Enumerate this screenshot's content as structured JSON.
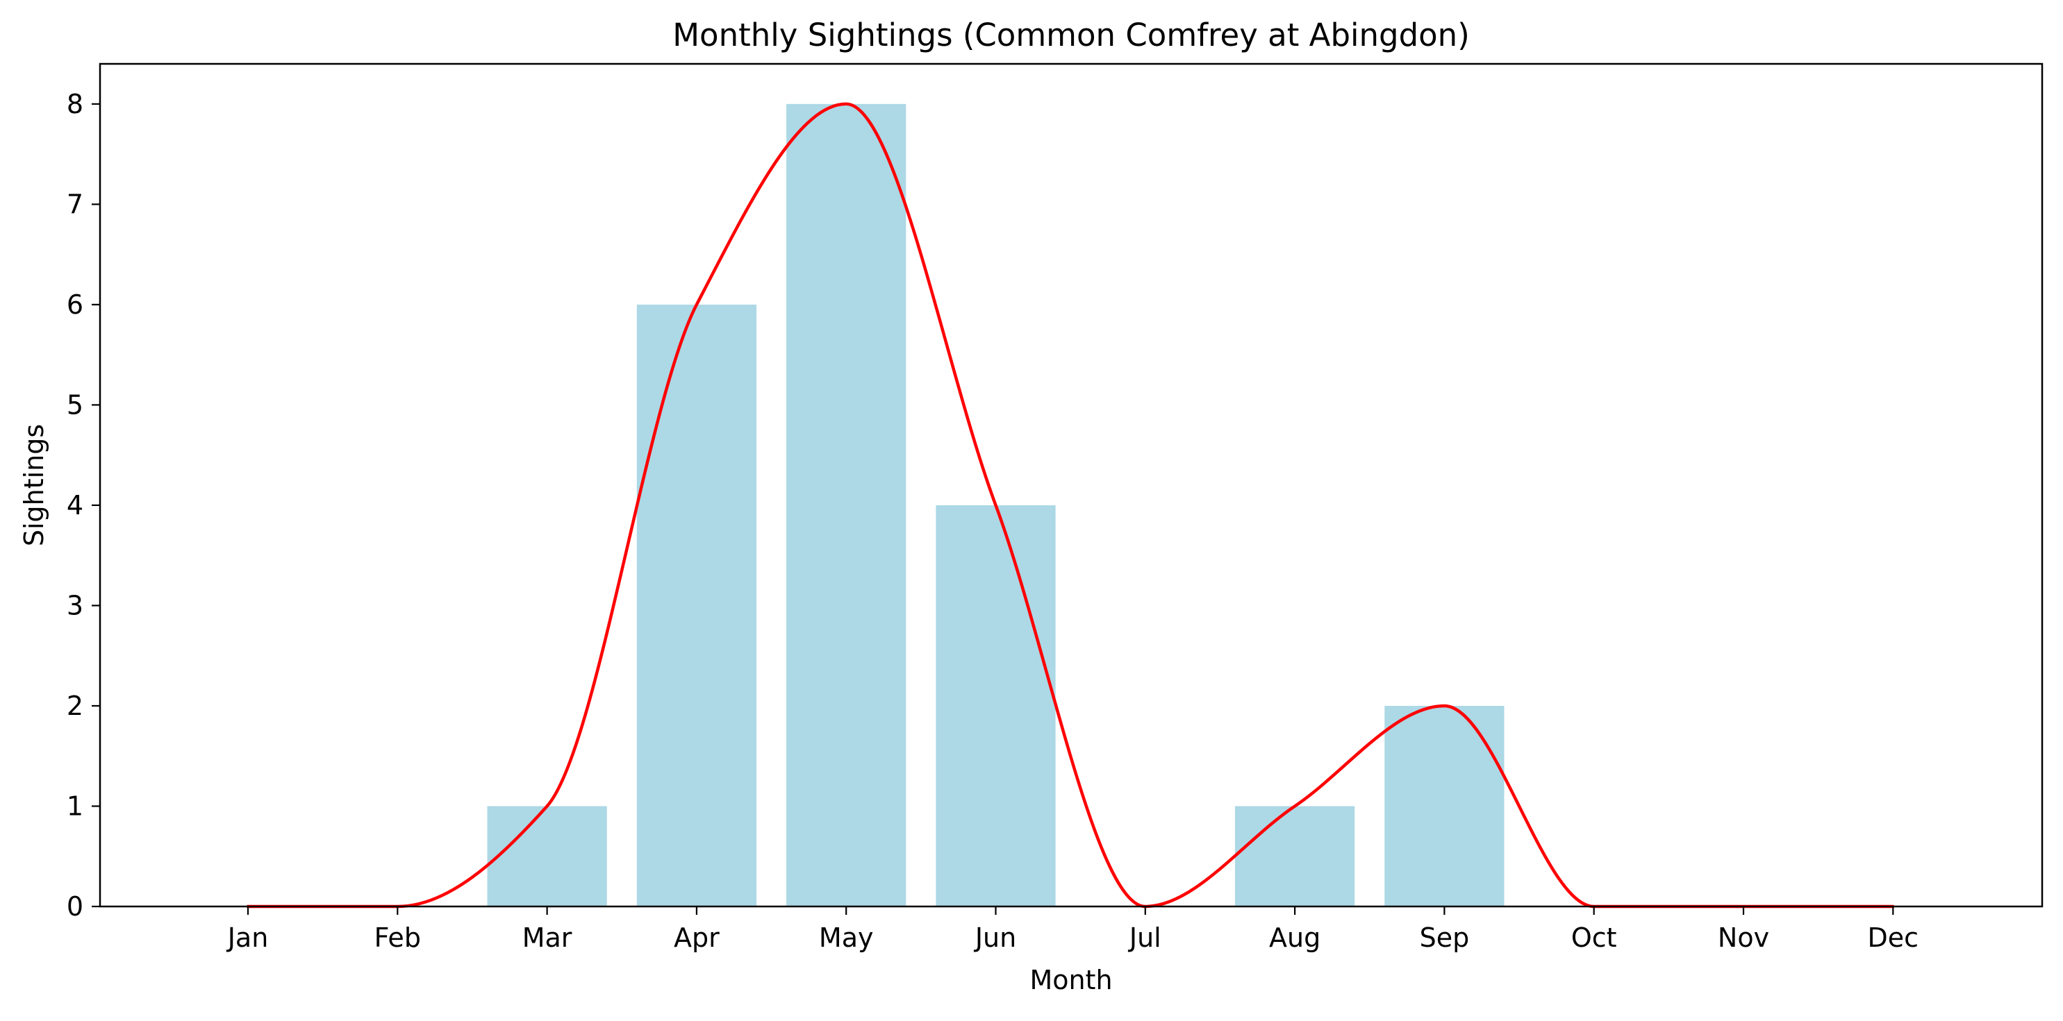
{
  "chart_data": {
    "type": "bar",
    "title": "Monthly Sightings (Common Comfrey at Abingdon)",
    "xlabel": "Month",
    "ylabel": "Sightings",
    "categories": [
      "Jan",
      "Feb",
      "Mar",
      "Apr",
      "May",
      "Jun",
      "Jul",
      "Aug",
      "Sep",
      "Oct",
      "Nov",
      "Dec"
    ],
    "values": [
      0,
      0,
      1,
      6,
      8,
      4,
      0,
      1,
      2,
      0,
      0,
      0
    ],
    "ylim": [
      0,
      8.4
    ],
    "yticks": [
      0,
      1,
      2,
      3,
      4,
      5,
      6,
      7,
      8
    ],
    "grid": false,
    "legend": "none",
    "overlay_line": {
      "type": "line",
      "smooth": true,
      "values": [
        0,
        0,
        1,
        6,
        8,
        4,
        0,
        1,
        2,
        0,
        0,
        0
      ]
    },
    "colors": {
      "bar": "#add8e6",
      "line": "#ff0000"
    }
  }
}
